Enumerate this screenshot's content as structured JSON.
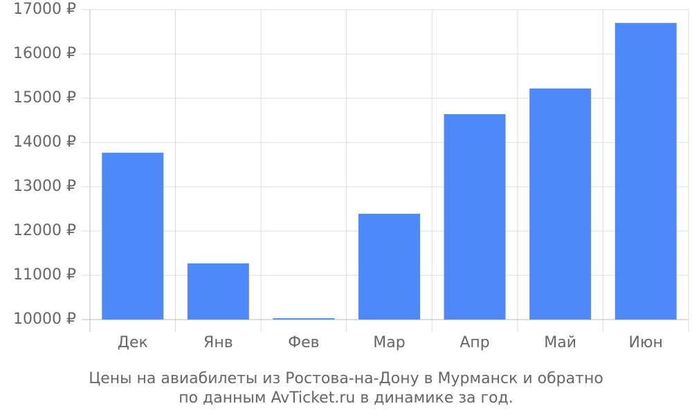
{
  "chart_data": {
    "type": "bar",
    "title": "Цены на авиабилеты из Ростова-на-Дону в Мурманск и обратно",
    "subtitle": "по данным AvTicket.ru в динамике за год.",
    "categories": [
      "Дек",
      "Янв",
      "Фев",
      "Мар",
      "Апр",
      "Май",
      "Июн"
    ],
    "values": [
      13770,
      11270,
      10030,
      12390,
      14640,
      15220,
      16700
    ],
    "color": "#4d89f9",
    "ylim": [
      10000,
      17000
    ],
    "yticks": [
      {
        "value": 10000,
        "label": "10000 ₽"
      },
      {
        "value": 11000,
        "label": "11000 ₽"
      },
      {
        "value": 12000,
        "label": "12000 ₽"
      },
      {
        "value": 13000,
        "label": "13000 ₽"
      },
      {
        "value": 14000,
        "label": "14000 ₽"
      },
      {
        "value": 15000,
        "label": "15000 ₽"
      },
      {
        "value": 16000,
        "label": "16000 ₽"
      },
      {
        "value": 17000,
        "label": "17000 ₽"
      }
    ],
    "grid": true
  }
}
